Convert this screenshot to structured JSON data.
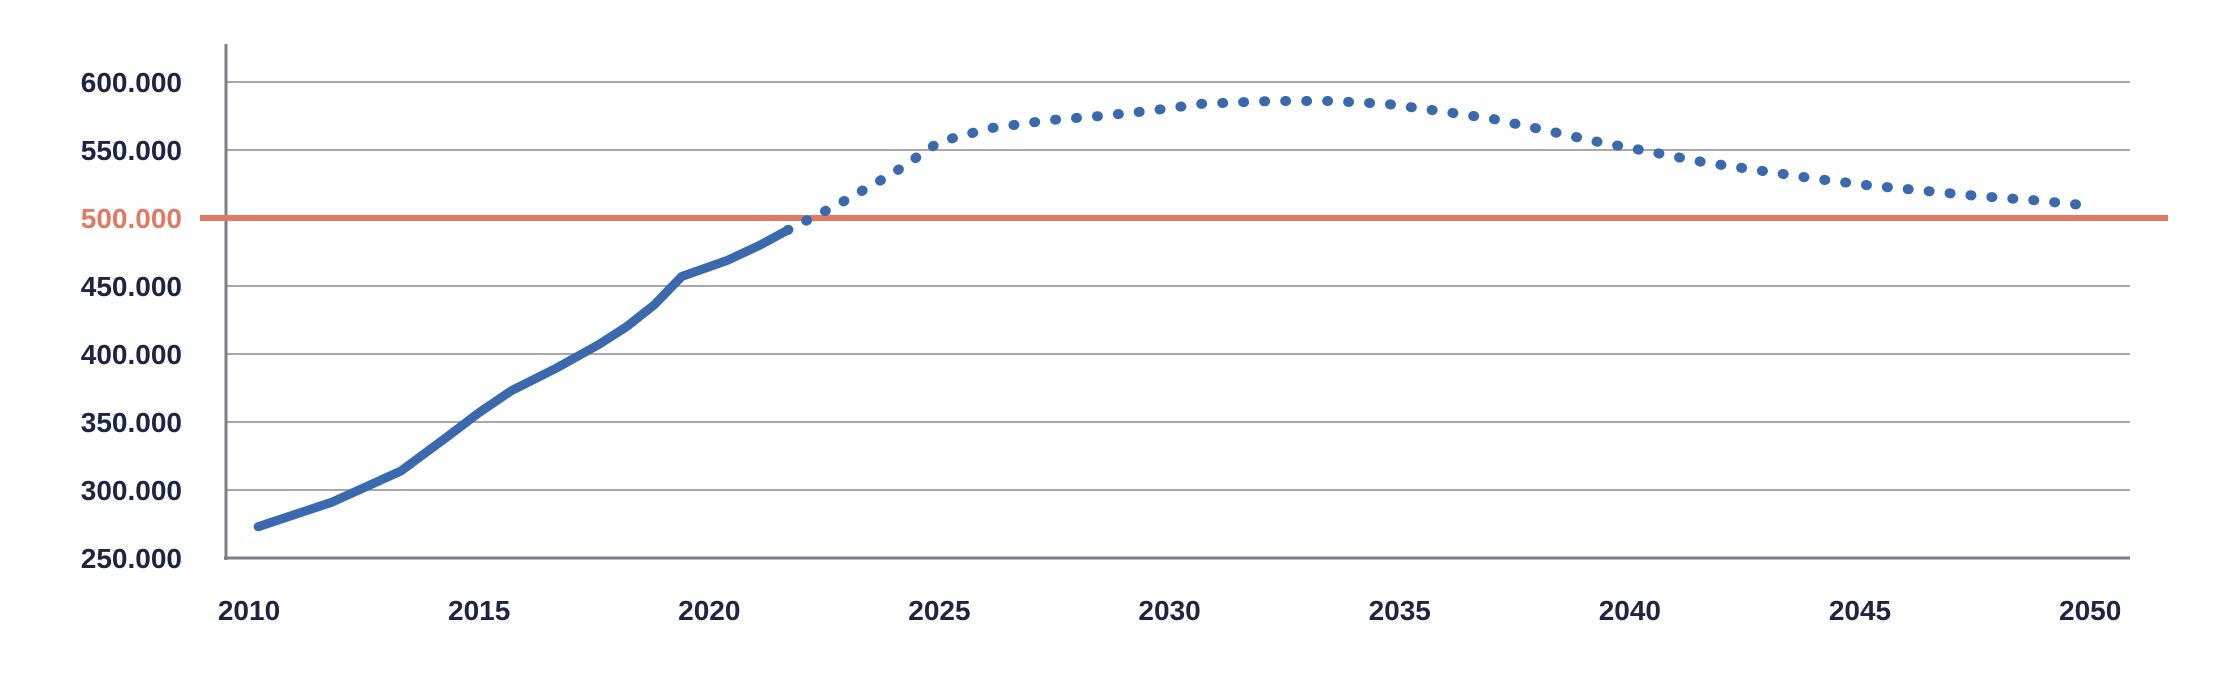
{
  "chart_data": {
    "type": "line",
    "title": "",
    "xlabel": "",
    "ylabel": "",
    "xlim": [
      2009.5,
      2051.8
    ],
    "ylim": [
      250000,
      600000
    ],
    "grid": true,
    "x_ticks": [
      {
        "value": 2010,
        "label": "2010"
      },
      {
        "value": 2015,
        "label": "2015"
      },
      {
        "value": 2020,
        "label": "2020"
      },
      {
        "value": 2025,
        "label": "2025"
      },
      {
        "value": 2030,
        "label": "2030"
      },
      {
        "value": 2035,
        "label": "2035"
      },
      {
        "value": 2040,
        "label": "2040"
      },
      {
        "value": 2045,
        "label": "2045"
      },
      {
        "value": 2050,
        "label": "2050"
      }
    ],
    "y_ticks": [
      {
        "value": 250000,
        "label": "250.000"
      },
      {
        "value": 300000,
        "label": "300.000"
      },
      {
        "value": 350000,
        "label": "350.000"
      },
      {
        "value": 400000,
        "label": "400.000"
      },
      {
        "value": 450000,
        "label": "450.000"
      },
      {
        "value": 500000,
        "label": "500.000",
        "highlight": true
      },
      {
        "value": 550000,
        "label": "550.000"
      },
      {
        "value": 600000,
        "label": "600.000"
      }
    ],
    "reference_line": {
      "y": 500000,
      "color": "#e07a64"
    },
    "series": [
      {
        "style": "solid",
        "color": "#3a69ad",
        "x": [
          2010.2,
          2011.8,
          2013.3,
          2014.3,
          2015.0,
          2015.7,
          2016.7,
          2017.6,
          2018.2,
          2018.8,
          2019.4,
          2020.4,
          2021.1,
          2021.7
        ],
        "y": [
          273000,
          291000,
          314000,
          339000,
          357000,
          373000,
          390000,
          407000,
          420000,
          436000,
          457000,
          469000,
          480000,
          491000
        ]
      },
      {
        "style": "dotted",
        "color": "#3a69ad",
        "x": [
          2021.7,
          2022.8,
          2024.0,
          2025.0,
          2026.1,
          2027.4,
          2028.5,
          2029.6,
          2030.7,
          2032.2,
          2033.5,
          2034.7,
          2035.8,
          2037.0,
          2038.1,
          2039.3,
          2040.4,
          2041.6,
          2042.8,
          2044.0,
          2045.2,
          2046.4,
          2047.6,
          2048.8,
          2050.0
        ],
        "y": [
          491000,
          510000,
          533000,
          556000,
          566000,
          572000,
          575000,
          579000,
          584000,
          586000,
          586000,
          584000,
          579000,
          573000,
          565000,
          556000,
          549000,
          541000,
          535000,
          529000,
          524000,
          520000,
          516000,
          513000,
          509000
        ]
      }
    ]
  }
}
